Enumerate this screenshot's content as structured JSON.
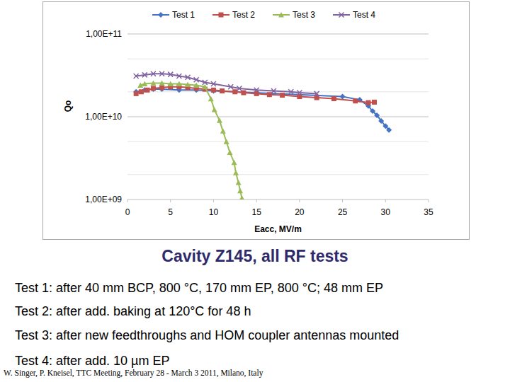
{
  "chart_data": {
    "type": "line",
    "x_label": "Eacc, MV/m",
    "y_label": "Qo",
    "xlim": [
      0,
      35
    ],
    "xticks": [
      0,
      5,
      10,
      15,
      20,
      25,
      30,
      35
    ],
    "ylim": [
      1000000000,
      100000000000
    ],
    "yticks": [
      {
        "value": 1000000000,
        "label": "1,00E+09"
      },
      {
        "value": 10000000000,
        "label": "1,00E+10"
      },
      {
        "value": 100000000000,
        "label": "1,00E+11"
      }
    ],
    "log": "y",
    "grid": true,
    "legend": "top",
    "series": [
      {
        "name": "Test 1",
        "color": "#4472c4",
        "marker": "diamond",
        "x": [
          1.0,
          2.0,
          3.0,
          4.0,
          6.0,
          8.0,
          10.0,
          25.0,
          27.0,
          28.0,
          28.5,
          29.0,
          29.5,
          30.0,
          30.4
        ],
        "values": [
          20000000000,
          21000000000,
          21500000000,
          21500000000,
          21000000000,
          21000000000,
          20500000000,
          17500000000,
          16000000000,
          13500000000,
          11700000000,
          10400000000,
          8900000000,
          7700000000,
          6900000000
        ]
      },
      {
        "name": "Test 2",
        "color": "#c0504d",
        "marker": "square",
        "x": [
          1.0,
          1.6,
          2.3,
          3.0,
          4.0,
          5.0,
          6.0,
          7.0,
          8.0,
          9.0,
          10.0,
          11.0,
          12.5,
          13.5,
          15.0,
          16.5,
          18.0,
          20.0,
          22.0,
          24.0,
          26.5,
          28.0,
          28.7
        ],
        "values": [
          19000000000,
          20000000000,
          21000000000,
          22000000000,
          22500000000,
          23000000000,
          23000000000,
          22500000000,
          22000000000,
          21500000000,
          21000000000,
          20500000000,
          20000000000,
          19500000000,
          19000000000,
          18500000000,
          18200000000,
          17500000000,
          17000000000,
          16500000000,
          15500000000,
          14800000000,
          15000000000
        ]
      },
      {
        "name": "Test 3",
        "color": "#9bbb59",
        "marker": "triangle",
        "x": [
          1.5,
          2.0,
          3.0,
          4.0,
          5.0,
          6.0,
          7.0,
          8.0,
          9.0,
          9.7,
          10.1,
          10.7,
          11.1,
          11.5,
          11.9,
          12.4,
          12.6,
          12.9,
          13.1,
          13.3
        ],
        "values": [
          24000000000,
          25000000000,
          25500000000,
          25500000000,
          25000000000,
          25000000000,
          24500000000,
          24000000000,
          23000000000,
          16400000000,
          12200000000,
          9000000000,
          6700000000,
          5000000000,
          3700000000,
          2800000000,
          2100000000,
          1600000000,
          1270000000,
          1040000000
        ]
      },
      {
        "name": "Test 4",
        "color": "#8064a2",
        "marker": "x",
        "x": [
          1.0,
          2.0,
          3.0,
          4.0,
          5.0,
          6.0,
          7.0,
          8.0,
          9.0,
          10.0,
          12.0,
          13.0,
          15.0,
          17.0,
          19.0,
          20.0,
          22.0
        ],
        "values": [
          31000000000,
          32000000000,
          33000000000,
          33000000000,
          32500000000,
          31000000000,
          30000000000,
          28000000000,
          26000000000,
          25000000000,
          23000000000,
          22000000000,
          21000000000,
          20500000000,
          20000000000,
          19500000000,
          19000000000
        ]
      }
    ]
  },
  "caption": {
    "title": "Cavity Z145, all RF tests",
    "lines": [
      "Test 1: after 40 mm BCP, 800 °C, 170 mm EP, 800 °C; 48 mm EP",
      "Test 2: after add. baking at 120°C for 48 h",
      "Test 3: after new feedthroughs and HOM coupler antennas mounted",
      "Test 4: after add. 10 µm EP"
    ],
    "credit": "W. Singer, P. Kneisel, TTC Meeting, February 28 - March 3 2011, Milano, Italy"
  }
}
